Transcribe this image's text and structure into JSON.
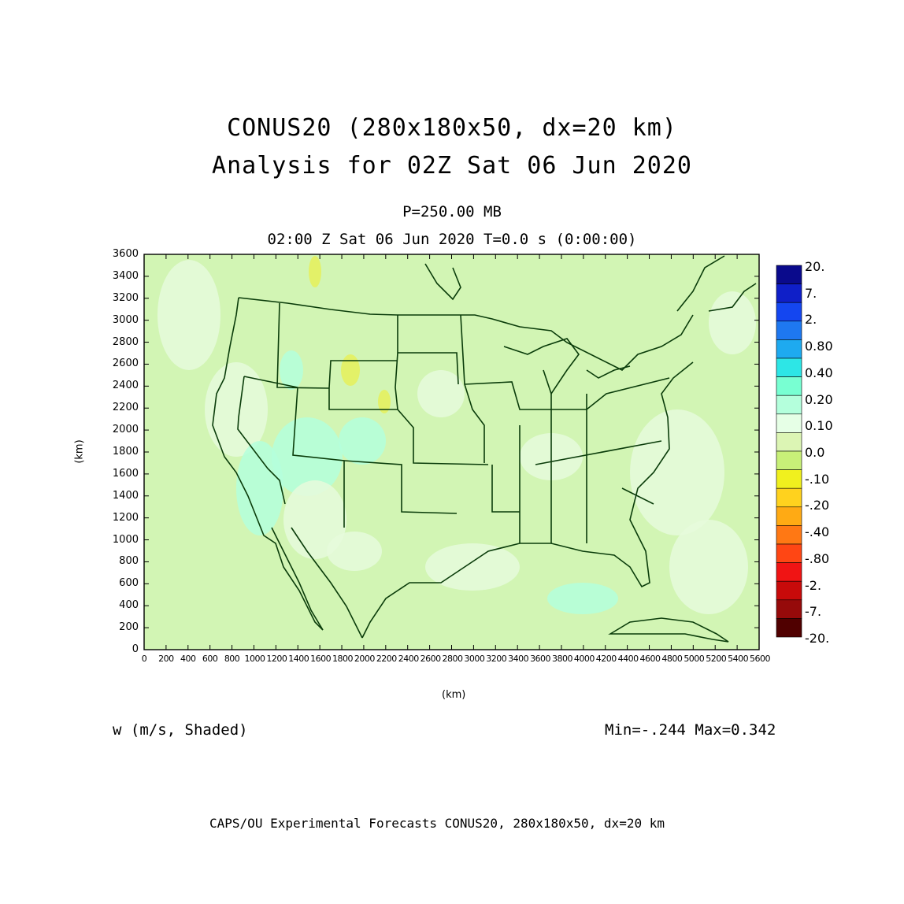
{
  "title": {
    "line1": "CONUS20 (280x180x50, dx=20 km)",
    "line2": "Analysis for 02Z Sat 06 Jun 2020"
  },
  "subtitle": {
    "level": "P=250.00 MB",
    "time": "02:00 Z Sat 06 Jun 2020    T=0.0 s (0:00:00)"
  },
  "axes": {
    "x_label": "(km)",
    "y_label": "(km)",
    "x_ticks": [
      "0",
      "200",
      "400",
      "600",
      "800",
      "1000",
      "1200",
      "1400",
      "1600",
      "1800",
      "2000",
      "2200",
      "2400",
      "2600",
      "2800",
      "3000",
      "3200",
      "3400",
      "3600",
      "3800",
      "4000",
      "4200",
      "4400",
      "4600",
      "4800",
      "5000",
      "5200",
      "5400",
      "5600"
    ],
    "y_ticks": [
      "0",
      "200",
      "400",
      "600",
      "800",
      "1000",
      "1200",
      "1400",
      "1600",
      "1800",
      "2000",
      "2200",
      "2400",
      "2600",
      "2800",
      "3000",
      "3200",
      "3400",
      "3600"
    ],
    "x_range": [
      0,
      5600
    ],
    "y_range": [
      0,
      3600
    ]
  },
  "colorbar": {
    "labels": [
      "20.",
      "7.",
      "2.",
      "0.80",
      "0.40",
      "0.20",
      "0.10",
      "0.0",
      "-.10",
      "-.20",
      "-.40",
      "-.80",
      "-2.",
      "-7.",
      "-20."
    ],
    "colors": [
      "#0a0a8c",
      "#0f1fc8",
      "#1446f0",
      "#1e78f0",
      "#1eaaf0",
      "#2de6e6",
      "#78ffd2",
      "#b4ffdc",
      "#e6ffe6",
      "#dcf5b4",
      "#c8f078",
      "#f0f01e",
      "#ffd21e",
      "#ffaa14",
      "#ff7814",
      "#ff4614",
      "#f01414",
      "#c80a0a",
      "#960a0a",
      "#500000"
    ]
  },
  "field": {
    "background_color": "#d2f5b4",
    "pale_color": "#e6fadc",
    "cyan_color": "#b4ffdc",
    "yellow_color": "#e6f05a",
    "border_color": "#0a3c0a"
  },
  "footer": {
    "variable": "w (m/s, Shaded)",
    "minmax": "Min=-.244 Max=0.342",
    "credit": "CAPS/OU Experimental Forecasts  CONUS20, 280x180x50, dx=20 km"
  }
}
